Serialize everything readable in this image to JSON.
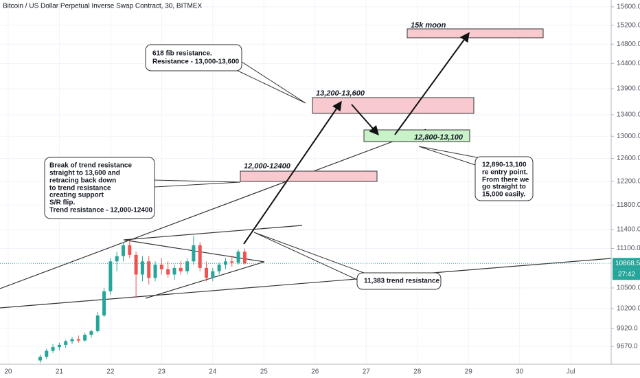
{
  "chart_data": {
    "type": "candlestick",
    "title": "Bitcoin / US Dollar Perpetual Inverse Swap Contract, 30, BITMEX",
    "log_scale": true,
    "up_color": "#26a69a",
    "down_color": "#ef5350",
    "x": [
      20.625,
      20.75,
      20.875,
      21.0,
      21.125,
      21.25,
      21.375,
      21.5,
      21.625,
      21.75,
      21.875,
      22.0,
      22.125,
      22.25,
      22.375,
      22.5,
      22.625,
      22.75,
      22.875,
      23.0,
      23.125,
      23.25,
      23.375,
      23.5,
      23.625,
      23.75,
      23.875,
      24.0,
      24.125,
      24.25,
      24.375,
      24.5,
      24.625
    ],
    "open": [
      9480,
      9530,
      9610,
      9660,
      9690,
      9740,
      9770,
      9750,
      9830,
      9880,
      10100,
      10450,
      10900,
      10980,
      11150,
      11000,
      10700,
      10900,
      10650,
      10850,
      10780,
      10700,
      10800,
      10750,
      10900,
      11150,
      10800,
      10650,
      10750,
      10850,
      10900,
      10880,
      11050
    ],
    "high": [
      9560,
      9640,
      9700,
      9720,
      9760,
      9800,
      9820,
      9860,
      9900,
      10150,
      10500,
      10950,
      11050,
      11200,
      11230,
      11050,
      10980,
      10980,
      10900,
      10950,
      10900,
      10850,
      10900,
      10950,
      11300,
      11200,
      10900,
      10800,
      10880,
      10950,
      10980,
      11080,
      11100
    ],
    "low": [
      9450,
      9500,
      9580,
      9620,
      9650,
      9700,
      9720,
      9730,
      9790,
      9860,
      10080,
      10400,
      10750,
      10900,
      10950,
      10350,
      10600,
      10550,
      10600,
      10700,
      10650,
      10620,
      10700,
      10700,
      10850,
      10750,
      10600,
      10600,
      10700,
      10780,
      10820,
      10850,
      10850
    ],
    "close": [
      9530,
      9610,
      9660,
      9690,
      9740,
      9770,
      9750,
      9830,
      9880,
      10100,
      10450,
      10900,
      10980,
      11150,
      11000,
      10700,
      10900,
      10650,
      10850,
      10780,
      10700,
      10800,
      10750,
      10900,
      11150,
      10800,
      10650,
      10750,
      10850,
      10900,
      10880,
      11050,
      10868.5
    ],
    "xlim": [
      19.84,
      31.79
    ],
    "xticks": [
      20,
      21,
      22,
      23,
      24,
      25,
      26,
      27,
      28,
      29,
      30,
      {
        "value": 31,
        "label": "Jul"
      }
    ],
    "ylim": [
      9430,
      15750
    ],
    "yticks": [
      {
        "value": 9670,
        "label": "9670.0"
      },
      {
        "value": 9920,
        "label": "9920.0"
      },
      {
        "value": 10200,
        "label": "10200.0"
      },
      {
        "value": 10500,
        "label": "10500.0"
      },
      {
        "value": 11100,
        "label": "11100.0"
      },
      {
        "value": 11400,
        "label": "11400.0"
      },
      {
        "value": 11800,
        "label": "11800.0"
      },
      {
        "value": 12200,
        "label": "12200.0"
      },
      {
        "value": 12600,
        "label": "12600.0"
      },
      {
        "value": 13000,
        "label": "13000.0"
      },
      {
        "value": 13400,
        "label": "13400.0"
      },
      {
        "value": 13900,
        "label": "13900.0"
      },
      {
        "value": 14400,
        "label": "14400.0"
      },
      {
        "value": 14800,
        "label": "14800.0"
      },
      {
        "value": 15200,
        "label": "15200.0"
      },
      {
        "value": 15600,
        "label": "15600.0"
      }
    ],
    "last_price": 10868.5,
    "countdown": "27:42",
    "annotations": {
      "moon": "15k moon",
      "fib": [
        "618 fib resistance.",
        "Resistance - 13,000-13,600"
      ],
      "zone_high": "13,200-13,600",
      "zone_entry": "12,800-13,100",
      "zone_trend": "12,000-12400",
      "break": [
        "Break of trend resistance",
        "straight to 13,600 and",
        "retracing back down",
        "to trend resistance",
        "creating support",
        "S/R flip.",
        "Trend resistance - 12,000-12400"
      ],
      "entry": [
        "12,890-13,100",
        "re entry point.",
        "From there we",
        "go straight to",
        "15,000 easily."
      ],
      "trend": "11,383 trend resistance"
    }
  }
}
